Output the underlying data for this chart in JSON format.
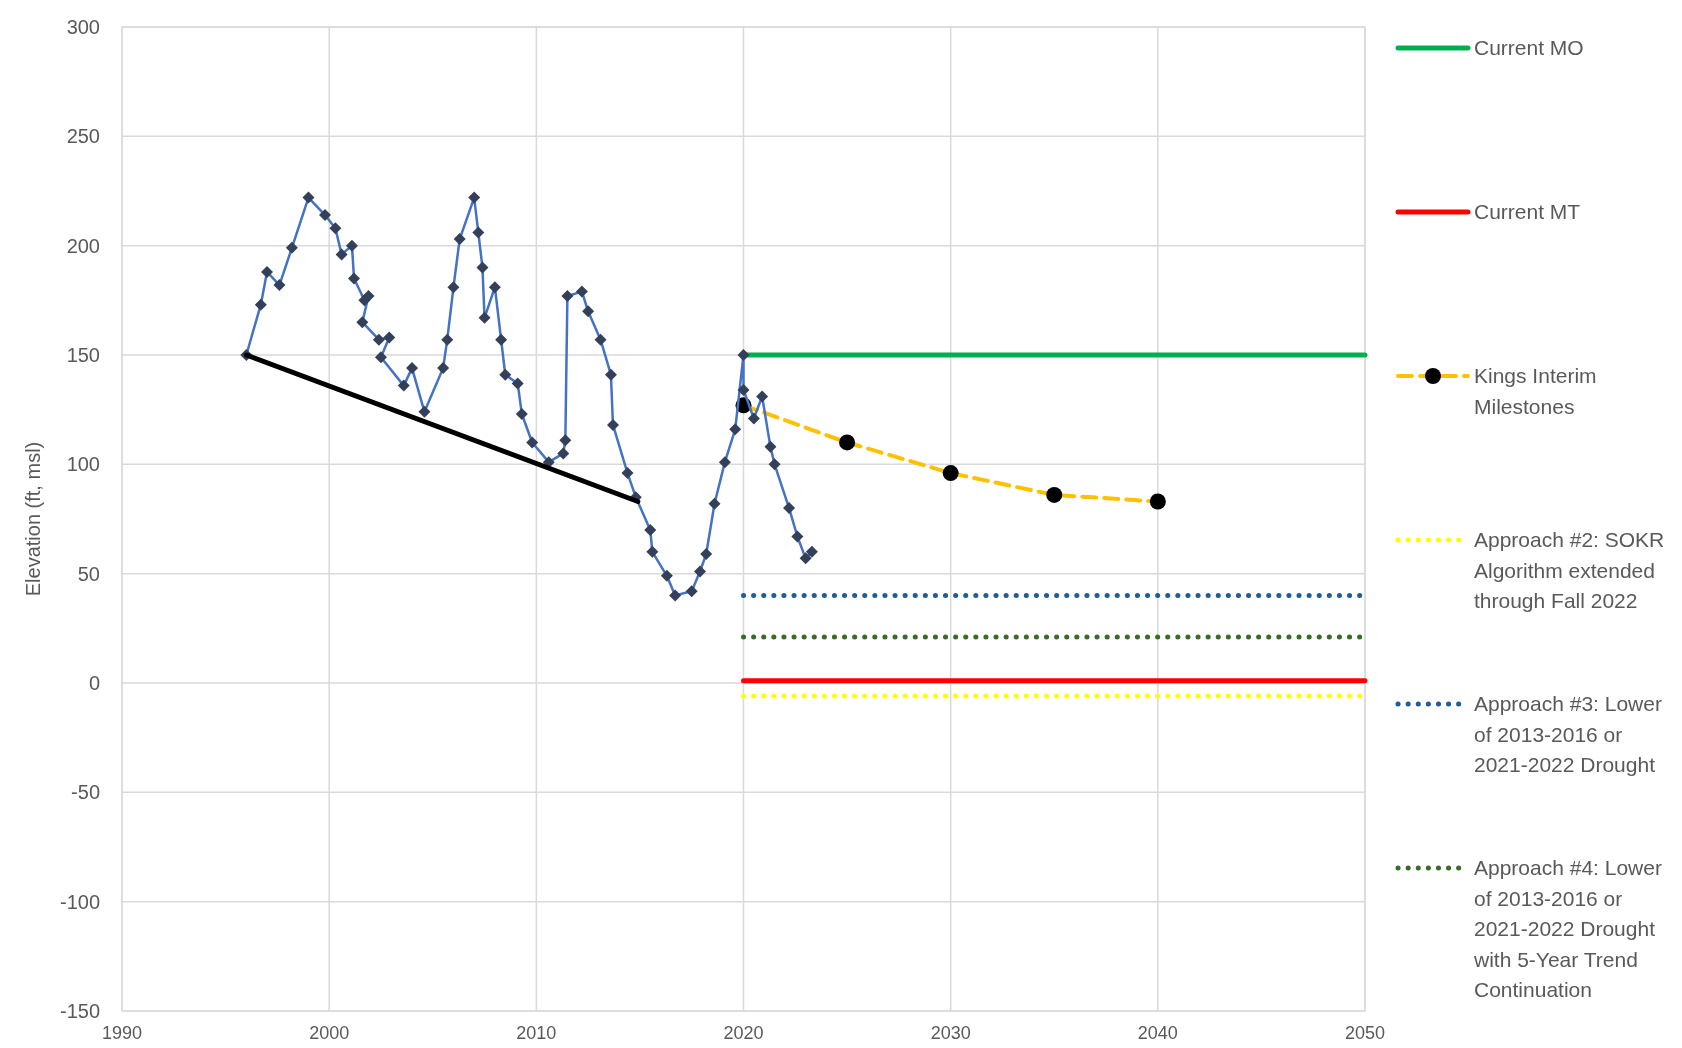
{
  "chart_data": {
    "type": "line",
    "ylabel": "Elevation (ft, msl)",
    "xlim": [
      1990,
      2050
    ],
    "xticks": [
      1990,
      2000,
      2010,
      2020,
      2030,
      2040,
      2050
    ],
    "ylim": [
      -150,
      300
    ],
    "yticks": [
      -150,
      -100,
      -50,
      0,
      50,
      100,
      150,
      200,
      250,
      300
    ],
    "grid": true,
    "legend": "right",
    "series": [
      {
        "name": "Current MO",
        "color": "#00b050",
        "x": [
          2020,
          2050
        ],
        "values": [
          150,
          150
        ],
        "line_style": "solid",
        "marker": "none"
      },
      {
        "name": "Current MT",
        "color": "#ff0000",
        "x": [
          2020,
          2050
        ],
        "values": [
          1,
          1
        ],
        "line_style": "solid",
        "marker": "none"
      },
      {
        "name": "Kings Interim Milestones",
        "color": "#ffc000",
        "x": [
          2020,
          2025,
          2030,
          2035,
          2040
        ],
        "values": [
          127,
          110,
          96,
          86,
          83
        ],
        "line_style": "dashed",
        "marker": "circle"
      },
      {
        "name": "Approach #2: SOKR Algorithm extended through Fall 2022",
        "color": "#ffff00",
        "x": [
          2020,
          2050
        ],
        "values": [
          -6,
          -6
        ],
        "line_style": "dotted",
        "marker": "none"
      },
      {
        "name": "Approach #3: Lower of 2013-2016 or 2021-2022 Drought",
        "color": "#1f5c99",
        "x": [
          2020,
          2050
        ],
        "values": [
          40,
          40
        ],
        "line_style": "dotted",
        "marker": "none"
      },
      {
        "name": "Approach #4: Lower of 2013-2016 or 2021-2022 Drought with 5-Year Trend Continuation",
        "color": "#3a6b2a",
        "x": [
          2020,
          2050
        ],
        "values": [
          21,
          21
        ],
        "line_style": "dotted",
        "marker": "none"
      },
      {
        "color": "#34405a",
        "x": [
          1996,
          1996.7,
          1997,
          1997.6,
          1998.2,
          1999,
          1999.8,
          2000.3,
          2000.6,
          2001.1,
          2001.2,
          2001.7,
          2001.9,
          2001.6,
          2002.4,
          2002.9,
          2002.5,
          2003.6,
          2004,
          2004.6,
          2005.5,
          2005.7,
          2006,
          2006.3,
          2007,
          2007.2,
          2007.4,
          2007.5,
          2008,
          2008.3,
          2008.5,
          2009.1,
          2009.3,
          2009.8,
          2010.6,
          2011.3,
          2011.4,
          2011.5,
          2012.2,
          2012.5,
          2013.1,
          2013.6,
          2013.7,
          2014.4,
          2014.8,
          2015.5,
          2015.6,
          2016.3,
          2016.7,
          2017.5,
          2017.9,
          2018.2,
          2018.6,
          2019.1,
          2019.6,
          2020,
          2020,
          2020.5,
          2020.9,
          2021.3,
          2021.5,
          2022.2,
          2022.6,
          2023,
          2023.3
        ],
        "values": [
          150,
          173,
          188,
          182,
          199,
          222,
          214,
          208,
          196,
          200,
          185,
          175,
          177,
          165,
          157,
          158,
          149,
          136,
          144,
          124,
          144,
          157,
          181,
          203,
          222,
          206,
          190,
          167,
          181,
          157,
          141,
          137,
          123,
          110,
          101,
          105,
          111,
          177,
          179,
          170,
          157,
          141,
          118,
          96,
          85,
          70,
          60,
          49,
          40,
          42,
          51,
          59,
          82,
          101,
          116,
          150,
          134,
          121,
          131,
          108,
          100,
          80,
          67,
          57,
          60
        ],
        "line_style": "solid",
        "marker": "diamond"
      },
      {
        "color": "#000000",
        "x": [
          1996,
          2014.9
        ],
        "values": [
          150,
          83
        ],
        "line_style": "solid",
        "marker": "none"
      }
    ]
  }
}
